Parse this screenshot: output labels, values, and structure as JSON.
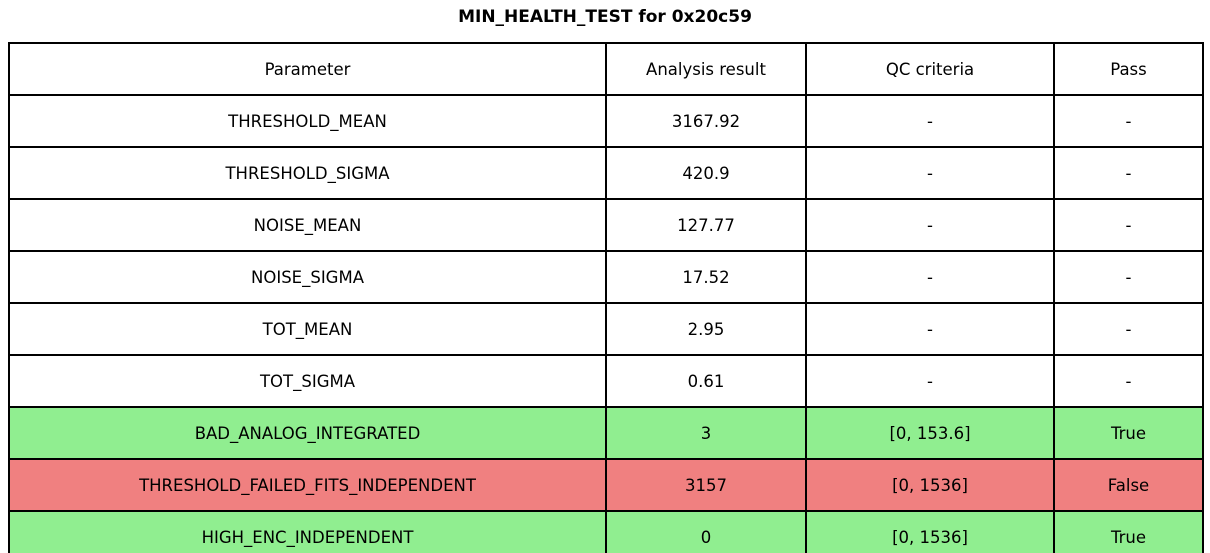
{
  "title": "MIN_HEALTH_TEST for 0x20c59",
  "colors": {
    "pass_row": "#90ee90",
    "fail_row": "#f08080",
    "border": "#000000",
    "background": "#ffffff",
    "text": "#000000"
  },
  "table": {
    "columns": [
      "Parameter",
      "Analysis result",
      "QC criteria",
      "Pass"
    ],
    "rows": [
      {
        "cells": [
          "THRESHOLD_MEAN",
          "3167.92",
          "-",
          "-"
        ],
        "status": "default"
      },
      {
        "cells": [
          "THRESHOLD_SIGMA",
          "420.9",
          "-",
          "-"
        ],
        "status": "default"
      },
      {
        "cells": [
          "NOISE_MEAN",
          "127.77",
          "-",
          "-"
        ],
        "status": "default"
      },
      {
        "cells": [
          "NOISE_SIGMA",
          "17.52",
          "-",
          "-"
        ],
        "status": "default"
      },
      {
        "cells": [
          "TOT_MEAN",
          "2.95",
          "-",
          "-"
        ],
        "status": "default"
      },
      {
        "cells": [
          "TOT_SIGMA",
          "0.61",
          "-",
          "-"
        ],
        "status": "default"
      },
      {
        "cells": [
          "BAD_ANALOG_INTEGRATED",
          "3",
          "[0, 153.6]",
          "True"
        ],
        "status": "pass"
      },
      {
        "cells": [
          "THRESHOLD_FAILED_FITS_INDEPENDENT",
          "3157",
          "[0, 1536]",
          "False"
        ],
        "status": "fail"
      },
      {
        "cells": [
          "HIGH_ENC_INDEPENDENT",
          "0",
          "[0, 1536]",
          "True"
        ],
        "status": "pass"
      }
    ]
  },
  "chart_data": {
    "type": "table",
    "title": "MIN_HEALTH_TEST for 0x20c59",
    "columns": [
      "Parameter",
      "Analysis result",
      "QC criteria",
      "Pass"
    ],
    "rows": [
      [
        "THRESHOLD_MEAN",
        3167.92,
        "-",
        "-"
      ],
      [
        "THRESHOLD_SIGMA",
        420.9,
        "-",
        "-"
      ],
      [
        "NOISE_MEAN",
        127.77,
        "-",
        "-"
      ],
      [
        "NOISE_SIGMA",
        17.52,
        "-",
        "-"
      ],
      [
        "TOT_MEAN",
        2.95,
        "-",
        "-"
      ],
      [
        "TOT_SIGMA",
        0.61,
        "-",
        "-"
      ],
      [
        "BAD_ANALOG_INTEGRATED",
        3,
        "[0, 153.6]",
        true
      ],
      [
        "THRESHOLD_FAILED_FITS_INDEPENDENT",
        3157,
        "[0, 1536]",
        false
      ],
      [
        "HIGH_ENC_INDEPENDENT",
        0,
        "[0, 1536]",
        true
      ]
    ],
    "qc_criteria": {
      "BAD_ANALOG_INTEGRATED": [
        0,
        153.6
      ],
      "THRESHOLD_FAILED_FITS_INDEPENDENT": [
        0,
        1536
      ],
      "HIGH_ENC_INDEPENDENT": [
        0,
        1536
      ]
    },
    "row_colors": [
      "#ffffff",
      "#ffffff",
      "#ffffff",
      "#ffffff",
      "#ffffff",
      "#ffffff",
      "#90ee90",
      "#f08080",
      "#90ee90"
    ],
    "layout": {
      "grid": true,
      "border_color": "#000000",
      "title_position": "top-center"
    }
  }
}
